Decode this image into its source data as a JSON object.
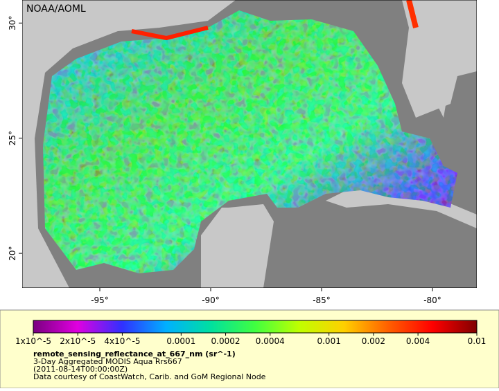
{
  "map": {
    "label": "NOAA/AOML",
    "xlim": [
      -98.5,
      -78
    ],
    "ylim": [
      18.5,
      31
    ],
    "xticks": [
      {
        "value": -95,
        "label": "-95°"
      },
      {
        "value": -90,
        "label": "-90°"
      },
      {
        "value": -85,
        "label": "-85°"
      },
      {
        "value": -80,
        "label": "-80°"
      }
    ],
    "yticks": [
      {
        "value": 30,
        "label": "30°"
      },
      {
        "value": 25,
        "label": "25°"
      },
      {
        "value": 20,
        "label": "20°"
      }
    ]
  },
  "colorbar": {
    "scale": "log",
    "lim": [
      1e-05,
      0.01
    ],
    "colors": [
      "#7a0080",
      "#e000e0",
      "#3030ff",
      "#00b0ff",
      "#00e0a0",
      "#40ff40",
      "#c0ff00",
      "#ffd000",
      "#ff6000",
      "#ff0000",
      "#800000"
    ],
    "ticks": [
      {
        "value": 1e-05,
        "label": "1x10^-5"
      },
      {
        "value": 2e-05,
        "label": "2x10^-5"
      },
      {
        "value": 4e-05,
        "label": "4x10^-5"
      },
      0.0001,
      0.0002,
      0.0004,
      0.001,
      0.002,
      0.004,
      0.01
    ]
  },
  "legend": {
    "title": "remote_sensing_reflectance_at_667_nm (sr^-1)",
    "lines": [
      "3-Day Aggregated MODIS Aqua Rrs667",
      "(2011-08-14T00:00:00Z)",
      "Data courtesy of CoastWatch, Carib. and GoM Regional Node"
    ]
  }
}
